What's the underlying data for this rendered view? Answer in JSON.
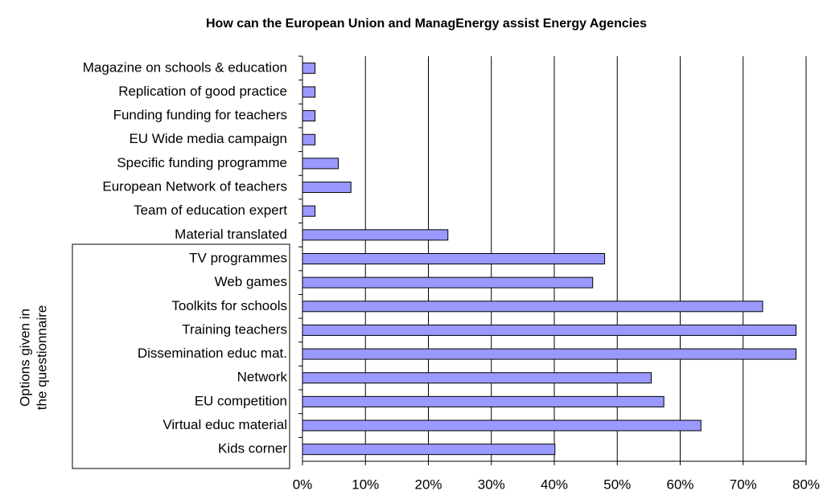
{
  "chart_data": {
    "type": "barh",
    "title": "How can the European Union and ManagEnergy assist Energy Agencies",
    "annotation": [
      "Options given in",
      "the questionnaire"
    ],
    "categories": [
      "Magazine on schools & education",
      "Replication of good practice",
      "Funding funding for teachers",
      "EU Wide media campaign",
      "Specific funding programme",
      "European Network of teachers",
      "Team of education expert",
      "Material translated",
      "TV programmes",
      "Web games",
      "Toolkits for schools",
      "Training teachers",
      "Dissemination educ mat.",
      "Network",
      "EU competition",
      "Virtual educ material",
      "Kids corner"
    ],
    "values": [
      2,
      2,
      2,
      2,
      5.7,
      7.7,
      2,
      23.1,
      48,
      46.1,
      73.1,
      78.4,
      78.4,
      55.4,
      57.4,
      63.3,
      40.1
    ],
    "color": "#9999ff",
    "xlim": [
      0,
      80
    ],
    "xticks": [
      {
        "value": 0,
        "label": "0%"
      },
      {
        "value": 10,
        "label": "10%"
      },
      {
        "value": 20,
        "label": "20%"
      },
      {
        "value": 30,
        "label": "30%"
      },
      {
        "value": 40,
        "label": "40%"
      },
      {
        "value": 50,
        "label": "50%"
      },
      {
        "value": 60,
        "label": "60%"
      },
      {
        "value": 70,
        "label": "70%"
      },
      {
        "value": 80,
        "label": "80%"
      }
    ],
    "grid": true
  }
}
